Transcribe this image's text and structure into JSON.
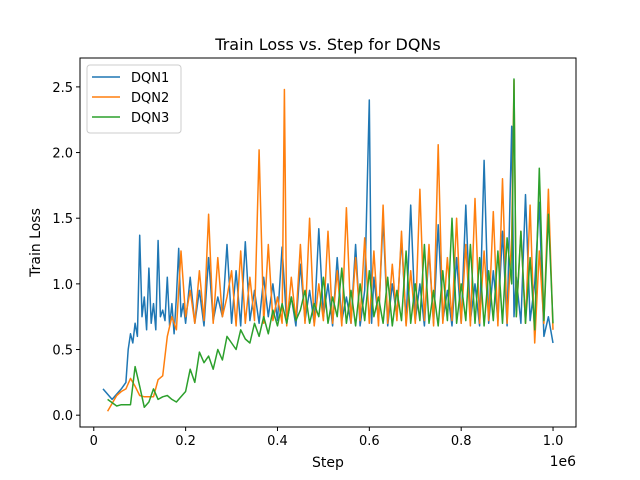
{
  "chart_data": {
    "type": "line",
    "title": "Train Loss vs. Step for DQNs",
    "xlabel": "Step",
    "ylabel": "Train Loss",
    "x_scale_label": "1e6",
    "xlim": [
      -30000,
      1050000
    ],
    "ylim": [
      -0.09,
      2.72
    ],
    "x_ticks": [
      0,
      200000,
      400000,
      600000,
      800000,
      1000000
    ],
    "x_tick_labels": [
      "0",
      "0.2",
      "0.4",
      "0.6",
      "0.8",
      "1.0"
    ],
    "y_ticks": [
      0,
      0.5,
      1.0,
      1.5,
      2.0,
      2.5
    ],
    "y_tick_labels": [
      "0.0",
      "0.5",
      "1.0",
      "1.5",
      "2.0",
      "2.5"
    ],
    "grid": false,
    "legend_position": "top-left",
    "series": [
      {
        "name": "DQN1",
        "color": "#1f77b4",
        "x": [
          20000,
          40000,
          60000,
          70000,
          75000,
          80000,
          85000,
          90000,
          95000,
          100000,
          105000,
          110000,
          115000,
          120000,
          125000,
          130000,
          135000,
          140000,
          145000,
          150000,
          155000,
          160000,
          165000,
          170000,
          175000,
          180000,
          185000,
          190000,
          195000,
          200000,
          210000,
          220000,
          230000,
          240000,
          250000,
          260000,
          270000,
          280000,
          290000,
          300000,
          310000,
          320000,
          330000,
          340000,
          350000,
          360000,
          370000,
          380000,
          390000,
          400000,
          410000,
          420000,
          430000,
          440000,
          450000,
          460000,
          470000,
          480000,
          490000,
          500000,
          510000,
          520000,
          530000,
          540000,
          550000,
          560000,
          570000,
          580000,
          590000,
          600000,
          605000,
          610000,
          620000,
          630000,
          640000,
          650000,
          660000,
          670000,
          680000,
          690000,
          700000,
          710000,
          720000,
          730000,
          740000,
          750000,
          760000,
          770000,
          780000,
          790000,
          800000,
          810000,
          820000,
          830000,
          840000,
          850000,
          860000,
          870000,
          880000,
          890000,
          900000,
          910000,
          915000,
          920000,
          930000,
          940000,
          950000,
          960000,
          970000,
          980000,
          990000,
          1000000
        ],
        "y": [
          0.2,
          0.12,
          0.2,
          0.25,
          0.5,
          0.62,
          0.55,
          0.7,
          0.6,
          1.37,
          0.75,
          0.9,
          0.65,
          1.12,
          0.7,
          0.85,
          0.65,
          1.33,
          0.75,
          0.8,
          0.72,
          1.05,
          0.68,
          0.85,
          0.62,
          0.9,
          1.27,
          0.75,
          0.85,
          0.7,
          1.05,
          0.7,
          0.95,
          0.68,
          1.2,
          0.72,
          0.9,
          0.75,
          1.3,
          0.7,
          1.1,
          0.68,
          1.32,
          0.72,
          0.95,
          0.7,
          1.05,
          0.75,
          1.0,
          0.72,
          1.28,
          0.7,
          0.9,
          0.68,
          1.15,
          0.72,
          0.95,
          0.7,
          1.42,
          0.75,
          1.0,
          0.68,
          1.2,
          0.72,
          0.9,
          0.7,
          1.3,
          0.68,
          0.95,
          2.4,
          0.7,
          1.05,
          0.72,
          1.5,
          0.68,
          1.0,
          0.75,
          1.35,
          0.7,
          1.6,
          0.72,
          1.0,
          0.68,
          1.25,
          0.7,
          1.45,
          0.72,
          0.95,
          0.68,
          1.2,
          0.7,
          1.6,
          0.72,
          1.0,
          0.68,
          1.94,
          0.7,
          1.1,
          0.72,
          1.4,
          0.68,
          2.2,
          0.75,
          1.05,
          0.7,
          1.68,
          0.72,
          1.0,
          1.62,
          0.6,
          0.75,
          0.55
        ]
      },
      {
        "name": "DQN2",
        "color": "#ff7f0e",
        "x": [
          30000,
          50000,
          60000,
          70000,
          80000,
          90000,
          100000,
          110000,
          120000,
          130000,
          140000,
          150000,
          160000,
          170000,
          180000,
          190000,
          200000,
          210000,
          220000,
          230000,
          240000,
          250000,
          260000,
          270000,
          280000,
          290000,
          300000,
          310000,
          320000,
          330000,
          340000,
          350000,
          360000,
          370000,
          380000,
          390000,
          400000,
          410000,
          415000,
          420000,
          430000,
          440000,
          450000,
          460000,
          470000,
          480000,
          490000,
          500000,
          510000,
          520000,
          530000,
          540000,
          550000,
          560000,
          570000,
          580000,
          590000,
          600000,
          610000,
          620000,
          630000,
          640000,
          650000,
          660000,
          670000,
          680000,
          690000,
          700000,
          710000,
          720000,
          730000,
          740000,
          750000,
          760000,
          770000,
          780000,
          790000,
          800000,
          810000,
          820000,
          830000,
          840000,
          850000,
          860000,
          870000,
          880000,
          890000,
          900000,
          910000,
          915000,
          920000,
          930000,
          940000,
          950000,
          960000,
          970000,
          980000,
          990000,
          1000000
        ],
        "y": [
          0.03,
          0.15,
          0.18,
          0.2,
          0.28,
          0.22,
          0.15,
          0.14,
          0.14,
          0.14,
          0.27,
          0.3,
          0.6,
          0.75,
          0.65,
          1.25,
          0.75,
          0.95,
          0.7,
          1.1,
          0.72,
          1.53,
          0.7,
          1.2,
          0.75,
          0.9,
          1.1,
          0.68,
          1.25,
          0.7,
          1.05,
          0.72,
          2.02,
          0.7,
          1.3,
          0.72,
          0.9,
          0.7,
          2.48,
          0.68,
          1.05,
          0.72,
          1.3,
          0.7,
          1.5,
          0.68,
          1.0,
          0.72,
          1.4,
          0.7,
          1.1,
          0.68,
          1.58,
          0.7,
          1.2,
          0.72,
          1.35,
          0.7,
          1.25,
          0.68,
          1.6,
          0.7,
          1.15,
          0.72,
          1.4,
          0.68,
          1.1,
          0.7,
          1.72,
          0.72,
          1.3,
          0.68,
          2.06,
          0.7,
          1.2,
          0.72,
          1.5,
          0.7,
          1.3,
          0.68,
          1.65,
          0.7,
          1.25,
          0.72,
          1.55,
          0.68,
          1.8,
          0.7,
          1.35,
          2.55,
          0.75,
          1.4,
          0.7,
          1.6,
          0.55,
          1.25,
          0.7,
          1.72,
          0.65
        ]
      },
      {
        "name": "DQN3",
        "color": "#2ca02c",
        "x": [
          30000,
          50000,
          60000,
          80000,
          90000,
          100000,
          110000,
          120000,
          130000,
          140000,
          150000,
          160000,
          170000,
          180000,
          190000,
          200000,
          210000,
          220000,
          230000,
          240000,
          250000,
          260000,
          270000,
          280000,
          290000,
          300000,
          310000,
          320000,
          330000,
          340000,
          350000,
          360000,
          370000,
          380000,
          390000,
          400000,
          410000,
          420000,
          430000,
          440000,
          450000,
          460000,
          470000,
          480000,
          490000,
          500000,
          510000,
          520000,
          530000,
          540000,
          550000,
          560000,
          570000,
          580000,
          590000,
          600000,
          610000,
          620000,
          630000,
          640000,
          650000,
          660000,
          670000,
          680000,
          690000,
          700000,
          710000,
          720000,
          730000,
          740000,
          750000,
          760000,
          770000,
          780000,
          790000,
          800000,
          810000,
          820000,
          830000,
          840000,
          850000,
          860000,
          870000,
          880000,
          890000,
          900000,
          910000,
          915000,
          920000,
          930000,
          940000,
          950000,
          960000,
          970000,
          980000,
          990000,
          1000000
        ],
        "y": [
          0.12,
          0.07,
          0.08,
          0.08,
          0.37,
          0.22,
          0.06,
          0.1,
          0.2,
          0.12,
          0.14,
          0.15,
          0.12,
          0.1,
          0.14,
          0.18,
          0.35,
          0.25,
          0.48,
          0.4,
          0.45,
          0.35,
          0.5,
          0.42,
          0.6,
          0.55,
          0.5,
          0.65,
          0.58,
          0.55,
          0.7,
          0.6,
          0.75,
          0.62,
          0.8,
          0.68,
          0.85,
          0.7,
          0.9,
          0.72,
          0.8,
          0.95,
          0.7,
          0.85,
          0.75,
          1.05,
          0.7,
          0.9,
          0.75,
          1.12,
          0.7,
          0.95,
          0.68,
          1.0,
          0.72,
          1.1,
          0.75,
          0.9,
          0.7,
          1.05,
          0.68,
          0.95,
          0.72,
          1.25,
          0.7,
          1.0,
          0.72,
          1.3,
          0.7,
          0.95,
          0.68,
          1.1,
          0.72,
          1.5,
          0.7,
          1.0,
          0.72,
          1.3,
          0.7,
          1.2,
          0.68,
          1.1,
          0.72,
          1.25,
          0.7,
          1.35,
          1.0,
          2.56,
          0.75,
          1.4,
          0.7,
          1.2,
          0.65,
          1.88,
          0.72,
          1.53,
          0.7
        ]
      }
    ]
  }
}
